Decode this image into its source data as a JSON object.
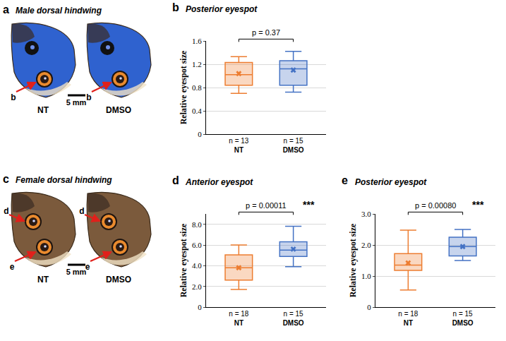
{
  "images": [
    {
      "panel": "a",
      "title": "Male dorsal hindwing",
      "wings": [
        "NT",
        "DMSO"
      ],
      "scale_bar": "5 mm",
      "arrows": [
        "b"
      ],
      "color": "#2f62cf"
    },
    {
      "panel": "c",
      "title": "Female dorsal hindwing",
      "wings": [
        "NT",
        "DMSO"
      ],
      "scale_bar": "5 mm",
      "arrows": [
        "d",
        "e"
      ],
      "color": "#7b5a3c"
    }
  ],
  "chart_data": [
    {
      "panel": "b",
      "type": "box",
      "title": "Posterior eyespot",
      "y_label": "Relative eyespot size",
      "categories": [
        "NT",
        "DMSO"
      ],
      "n_labels": [
        "n = 13",
        "n = 15"
      ],
      "series": [
        {
          "name": "NT",
          "color": "#ed7d31",
          "min": 0.7,
          "q1": 0.84,
          "median": 1.02,
          "mean": 1.04,
          "q3": 1.23,
          "max": 1.33
        },
        {
          "name": "DMSO",
          "color": "#4472c4",
          "min": 0.72,
          "q1": 0.84,
          "median": 1.12,
          "mean": 1.1,
          "q3": 1.26,
          "max": 1.42
        }
      ],
      "ylim": [
        0,
        1.6
      ],
      "yticks": [
        0,
        0.4,
        0.8,
        1.2,
        1.6
      ],
      "grid": true,
      "marker": "x",
      "p_label": "p = 0.37"
    },
    {
      "panel": "d",
      "type": "box",
      "title": "Anterior eyespot",
      "y_label": "Relative eyespot size",
      "categories": [
        "NT",
        "DMSO"
      ],
      "n_labels": [
        "n = 18",
        "n = 15"
      ],
      "series": [
        {
          "name": "NT",
          "color": "#ed7d31",
          "min": 1.7,
          "q1": 2.6,
          "median": 3.8,
          "mean": 3.8,
          "q3": 5.05,
          "max": 6.0
        },
        {
          "name": "DMSO",
          "color": "#4472c4",
          "min": 3.9,
          "q1": 4.9,
          "median": 5.5,
          "mean": 5.6,
          "q3": 6.3,
          "max": 7.8
        }
      ],
      "ylim": [
        0,
        9
      ],
      "yticks": [
        0,
        {
          "value": 2,
          "label": "2.0"
        },
        {
          "value": 4,
          "label": "4.0"
        },
        {
          "value": 6,
          "label": "6.0"
        },
        {
          "value": 8,
          "label": "8.0"
        }
      ],
      "grid": true,
      "marker": "x",
      "p_label": "p = 0.00011",
      "significance": "***"
    },
    {
      "panel": "e",
      "type": "box",
      "title": "Posterior eyespot",
      "y_label": "Relative eyespot size",
      "categories": [
        "NT",
        "DMSO"
      ],
      "n_labels": [
        "n = 18",
        "n = 15"
      ],
      "series": [
        {
          "name": "NT",
          "color": "#ed7d31",
          "min": 0.55,
          "q1": 1.18,
          "median": 1.35,
          "mean": 1.42,
          "q3": 1.72,
          "max": 2.48
        },
        {
          "name": "DMSO",
          "color": "#4472c4",
          "min": 1.5,
          "q1": 1.65,
          "median": 1.95,
          "mean": 1.95,
          "q3": 2.25,
          "max": 2.5
        }
      ],
      "ylim": [
        0,
        3
      ],
      "yticks": [
        0,
        {
          "value": 1,
          "label": "1.0"
        },
        {
          "value": 2,
          "label": "2.0"
        },
        {
          "value": 3,
          "label": "3.0"
        }
      ],
      "grid": true,
      "marker": "x",
      "p_label": "p = 0.00080",
      "significance": "***"
    }
  ]
}
